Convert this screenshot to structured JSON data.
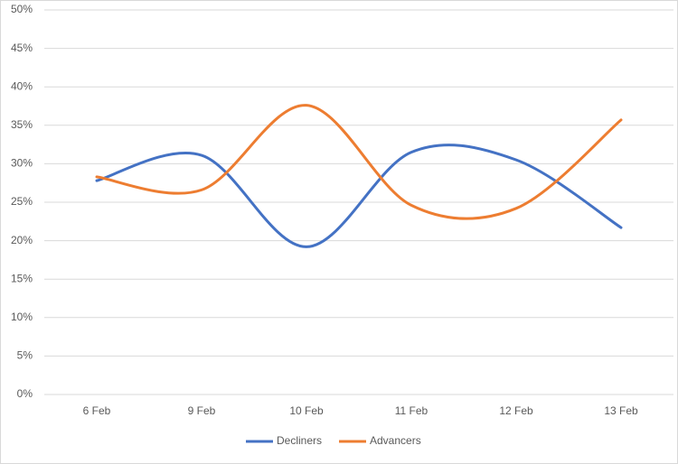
{
  "chart_data": {
    "type": "line",
    "smooth": true,
    "grid": true,
    "categories": [
      "6 Feb",
      "9 Feb",
      "10 Feb",
      "11 Feb",
      "12 Feb",
      "13 Feb"
    ],
    "series": [
      {
        "name": "Decliners",
        "color": "#4472c4",
        "values": [
          27.8,
          31.1,
          19.2,
          31.5,
          30.5,
          21.7
        ]
      },
      {
        "name": "Advancers",
        "color": "#ed7d31",
        "values": [
          28.3,
          26.6,
          37.6,
          24.6,
          24.2,
          35.7
        ]
      }
    ],
    "ylim": [
      0,
      50
    ],
    "yticks": [
      {
        "value": 0,
        "label": "0%"
      },
      {
        "value": 5,
        "label": "5%"
      },
      {
        "value": 10,
        "label": "10%"
      },
      {
        "value": 15,
        "label": "15%"
      },
      {
        "value": 20,
        "label": "20%"
      },
      {
        "value": 25,
        "label": "25%"
      },
      {
        "value": 30,
        "label": "30%"
      },
      {
        "value": 35,
        "label": "35%"
      },
      {
        "value": 40,
        "label": "40%"
      },
      {
        "value": 45,
        "label": "45%"
      },
      {
        "value": 50,
        "label": "50%"
      }
    ],
    "legend": "bottom"
  }
}
